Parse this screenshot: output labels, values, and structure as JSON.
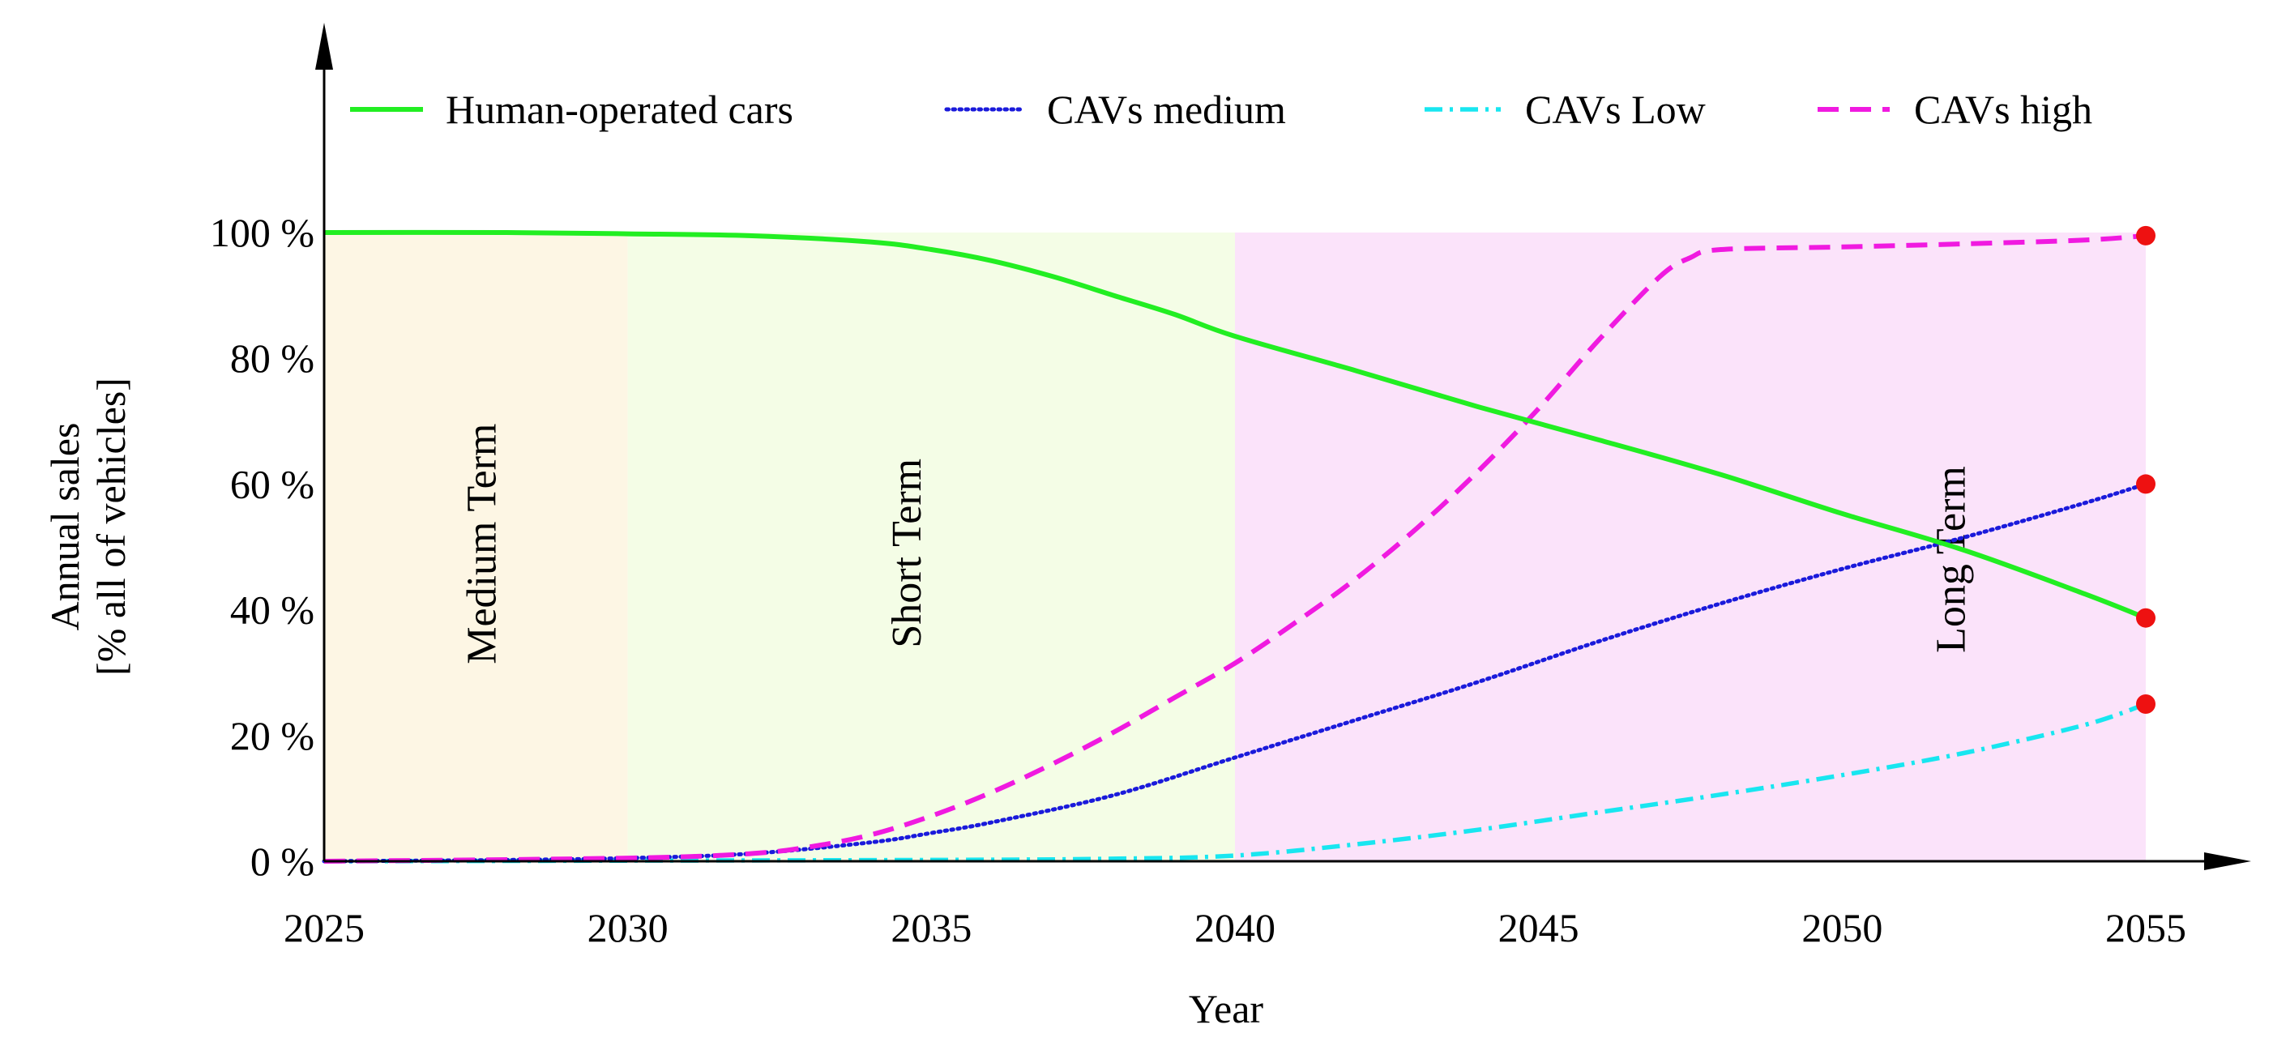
{
  "chart_data": {
    "type": "line",
    "title": "",
    "xlabel": "Year",
    "ylabel_lines": [
      "Annual sales",
      "[% all of vehicles]"
    ],
    "xlim": [
      2025,
      2055
    ],
    "ylim": [
      0,
      100
    ],
    "grid": false,
    "legend_position": "top",
    "x_ticks": [
      {
        "value": 2025,
        "label": "2025"
      },
      {
        "value": 2030,
        "label": "2030"
      },
      {
        "value": 2035,
        "label": "2035"
      },
      {
        "value": 2040,
        "label": "2040"
      },
      {
        "value": 2045,
        "label": "2045"
      },
      {
        "value": 2050,
        "label": "2050"
      },
      {
        "value": 2055,
        "label": "2055"
      }
    ],
    "y_ticks": [
      {
        "value": 0,
        "label": "0 %"
      },
      {
        "value": 20,
        "label": "20 %"
      },
      {
        "value": 40,
        "label": "40 %"
      },
      {
        "value": 60,
        "label": "60 %"
      },
      {
        "value": 80,
        "label": "80 %"
      },
      {
        "value": 100,
        "label": "100 %"
      }
    ],
    "regions": [
      {
        "key": "medium",
        "label": "Medium Term",
        "x0": 2025,
        "x1": 2030,
        "color": "#fdf6e4"
      },
      {
        "key": "short",
        "label": "Short Term",
        "x0": 2030,
        "x1": 2040,
        "color": "#f4fde6"
      },
      {
        "key": "long",
        "label": "Long Term",
        "x0": 2040,
        "x1": 2055,
        "color": "#fbe3fa"
      }
    ],
    "series": [
      {
        "key": "human",
        "name": "Human-operated cars",
        "color": "#22ee22",
        "dash": "solid",
        "points": [
          [
            2025,
            100
          ],
          [
            2028,
            100
          ],
          [
            2030,
            99.8
          ],
          [
            2032,
            99.5
          ],
          [
            2034,
            98.5
          ],
          [
            2035,
            97.3
          ],
          [
            2036,
            95.5
          ],
          [
            2037,
            93
          ],
          [
            2038,
            90
          ],
          [
            2039,
            87
          ],
          [
            2040,
            83.5
          ],
          [
            2042,
            78
          ],
          [
            2044,
            72.3
          ],
          [
            2046,
            67
          ],
          [
            2048,
            61.5
          ],
          [
            2050,
            55.3
          ],
          [
            2052,
            49.5
          ],
          [
            2054,
            42.5
          ],
          [
            2055,
            38.7
          ]
        ]
      },
      {
        "key": "medium",
        "name": "CAVs medium",
        "color": "#1a1adb",
        "dash": "dotted",
        "points": [
          [
            2025,
            0
          ],
          [
            2028,
            0.2
          ],
          [
            2030,
            0.5
          ],
          [
            2032,
            1.2
          ],
          [
            2034,
            3
          ],
          [
            2035,
            4.5
          ],
          [
            2036,
            6.2
          ],
          [
            2038,
            10.5
          ],
          [
            2040,
            16.5
          ],
          [
            2042,
            22.5
          ],
          [
            2044,
            28.5
          ],
          [
            2046,
            35
          ],
          [
            2048,
            41
          ],
          [
            2050,
            46.5
          ],
          [
            2052,
            51.5
          ],
          [
            2054,
            57
          ],
          [
            2055,
            60
          ]
        ]
      },
      {
        "key": "low",
        "name": "CAVs Low",
        "color": "#18e6f0",
        "dash": "dashdot",
        "points": [
          [
            2025,
            0
          ],
          [
            2030,
            0.1
          ],
          [
            2035,
            0.2
          ],
          [
            2038,
            0.4
          ],
          [
            2040,
            0.9
          ],
          [
            2042,
            2.7
          ],
          [
            2044,
            5
          ],
          [
            2046,
            7.8
          ],
          [
            2048,
            10.6
          ],
          [
            2050,
            13.7
          ],
          [
            2052,
            17.2
          ],
          [
            2054,
            21.7
          ],
          [
            2055,
            25
          ]
        ]
      },
      {
        "key": "high",
        "name": "CAVs high",
        "color": "#f01ae0",
        "dash": "dashed",
        "points": [
          [
            2025,
            0
          ],
          [
            2030,
            0.5
          ],
          [
            2032,
            1.2
          ],
          [
            2033,
            2.3
          ],
          [
            2034,
            4.2
          ],
          [
            2035,
            7.2
          ],
          [
            2036,
            11
          ],
          [
            2037,
            15.5
          ],
          [
            2038,
            20.5
          ],
          [
            2039,
            26
          ],
          [
            2040,
            31.5
          ],
          [
            2041,
            38
          ],
          [
            2042,
            45
          ],
          [
            2043,
            53
          ],
          [
            2044,
            62
          ],
          [
            2045,
            72
          ],
          [
            2046,
            83
          ],
          [
            2047,
            93
          ],
          [
            2047.5,
            96
          ],
          [
            2048,
            97.3
          ],
          [
            2050,
            97.7
          ],
          [
            2052,
            98.2
          ],
          [
            2054,
            98.8
          ],
          [
            2055,
            99.5
          ]
        ]
      }
    ],
    "endpoint_marker_color": "#ee1111"
  }
}
